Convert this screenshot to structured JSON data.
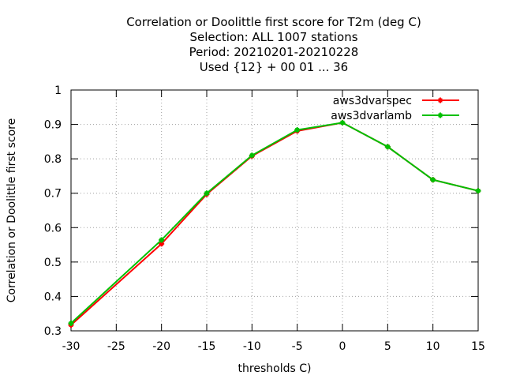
{
  "chart_data": {
    "type": "line",
    "title_lines": [
      "Correlation or Doolittle first score  for T2m (deg C)",
      "Selection: ALL   1007 stations",
      "Period: 20210201-20210228",
      "Used {12} + 00 01 ... 36"
    ],
    "xlabel": "thresholds C)",
    "ylabel": "Correlation or Doolittle first score",
    "x": [
      -30,
      -20,
      -15,
      -10,
      -5,
      0,
      5,
      10,
      15
    ],
    "xlim": [
      -30,
      15
    ],
    "ylim": [
      0.3,
      1.0
    ],
    "xticks": [
      "-30",
      "-25",
      "-20",
      "-15",
      "-10",
      "-5",
      "0",
      "5",
      "10",
      "15"
    ],
    "yticks": [
      "0.3",
      "0.4",
      "0.5",
      "0.6",
      "0.7",
      "0.8",
      "0.9",
      "1"
    ],
    "grid": true,
    "legend_position": "top-right",
    "series": [
      {
        "name": "aws3dvarspec",
        "color": "#ff0000",
        "values": [
          0.317,
          0.553,
          0.697,
          0.808,
          0.881,
          0.905,
          0.835,
          0.739,
          0.707
        ]
      },
      {
        "name": "aws3dvarlamb",
        "color": "#00c000",
        "values": [
          0.322,
          0.564,
          0.7,
          0.81,
          0.884,
          0.905,
          0.835,
          0.739,
          0.707
        ]
      }
    ]
  }
}
